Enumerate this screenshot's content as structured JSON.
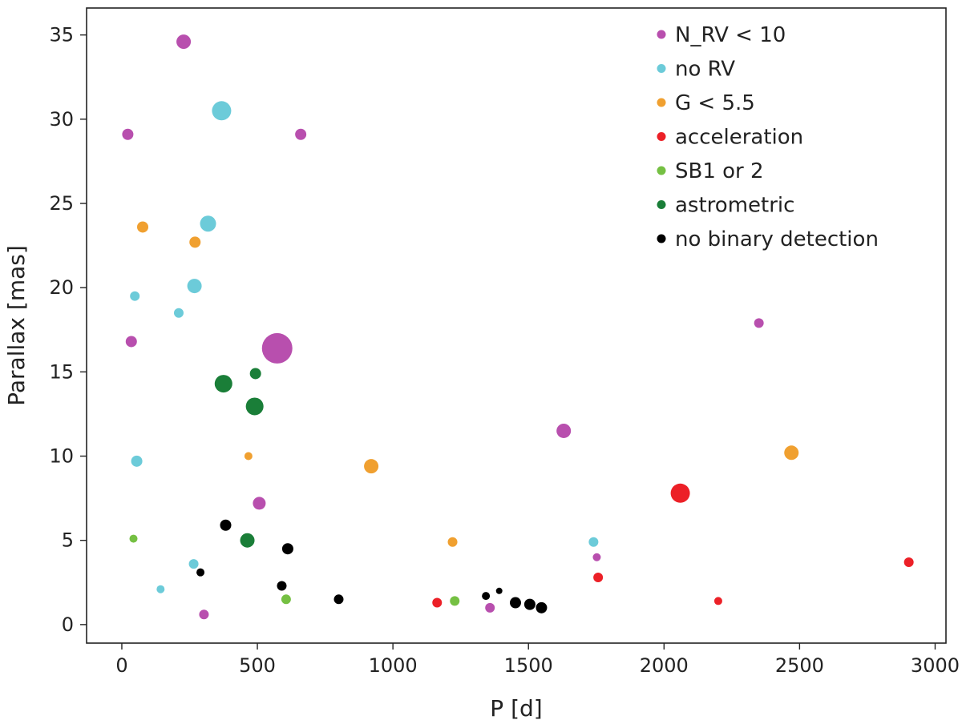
{
  "chart_data": {
    "type": "scatter",
    "title": "",
    "xlabel": "P [d]",
    "ylabel": "Parallax [mas]",
    "xlim": [
      -130,
      3040
    ],
    "ylim": [
      -1.1,
      36.6
    ],
    "xticks": [
      0,
      500,
      1000,
      1500,
      2000,
      2500,
      3000
    ],
    "yticks": [
      0,
      5,
      10,
      15,
      20,
      25,
      30,
      35
    ],
    "xtick_labels": [
      "0",
      "500",
      "1000",
      "1500",
      "2000",
      "2500",
      "3000"
    ],
    "ytick_labels": [
      "0",
      "5",
      "10",
      "15",
      "20",
      "25",
      "30",
      "35"
    ],
    "grid": false,
    "legend_position": "top-right",
    "series": [
      {
        "name": "N_RV < 10",
        "color": "#b84fae",
        "points": [
          {
            "x": 228,
            "y": 34.6,
            "size": 9
          },
          {
            "x": 22,
            "y": 29.1,
            "size": 7
          },
          {
            "x": 660,
            "y": 29.1,
            "size": 7
          },
          {
            "x": 35,
            "y": 16.8,
            "size": 7
          },
          {
            "x": 573,
            "y": 16.4,
            "size": 19
          },
          {
            "x": 1630,
            "y": 11.5,
            "size": 9
          },
          {
            "x": 2350,
            "y": 17.9,
            "size": 6
          },
          {
            "x": 507,
            "y": 7.2,
            "size": 8
          },
          {
            "x": 1752,
            "y": 4.0,
            "size": 5
          },
          {
            "x": 303,
            "y": 0.6,
            "size": 6
          },
          {
            "x": 1358,
            "y": 1.0,
            "size": 6
          }
        ]
      },
      {
        "name": "no RV",
        "color": "#6ccbd9",
        "points": [
          {
            "x": 368,
            "y": 30.5,
            "size": 12
          },
          {
            "x": 318,
            "y": 23.8,
            "size": 10
          },
          {
            "x": 268,
            "y": 20.1,
            "size": 9
          },
          {
            "x": 48,
            "y": 19.5,
            "size": 6
          },
          {
            "x": 210,
            "y": 18.5,
            "size": 6
          },
          {
            "x": 55,
            "y": 9.7,
            "size": 7
          },
          {
            "x": 265,
            "y": 3.6,
            "size": 6
          },
          {
            "x": 143,
            "y": 2.1,
            "size": 5
          },
          {
            "x": 1740,
            "y": 4.9,
            "size": 6
          }
        ]
      },
      {
        "name": "G < 5.5",
        "color": "#f0a030",
        "points": [
          {
            "x": 77,
            "y": 23.6,
            "size": 7
          },
          {
            "x": 270,
            "y": 22.7,
            "size": 7
          },
          {
            "x": 467,
            "y": 10.0,
            "size": 5
          },
          {
            "x": 920,
            "y": 9.4,
            "size": 9
          },
          {
            "x": 1220,
            "y": 4.9,
            "size": 6
          },
          {
            "x": 2470,
            "y": 10.2,
            "size": 9
          }
        ]
      },
      {
        "name": "acceleration",
        "color": "#ec2027",
        "points": [
          {
            "x": 2060,
            "y": 7.8,
            "size": 12
          },
          {
            "x": 1757,
            "y": 2.8,
            "size": 6
          },
          {
            "x": 1163,
            "y": 1.3,
            "size": 6
          },
          {
            "x": 2200,
            "y": 1.4,
            "size": 5
          },
          {
            "x": 2903,
            "y": 3.7,
            "size": 6
          }
        ]
      },
      {
        "name": "SB1 or 2",
        "color": "#75c043",
        "points": [
          {
            "x": 43,
            "y": 5.1,
            "size": 5
          },
          {
            "x": 606,
            "y": 1.5,
            "size": 6
          },
          {
            "x": 1228,
            "y": 1.4,
            "size": 6
          }
        ]
      },
      {
        "name": "astrometric",
        "color": "#1a7e38",
        "points": [
          {
            "x": 375,
            "y": 14.3,
            "size": 11
          },
          {
            "x": 493,
            "y": 14.9,
            "size": 7
          },
          {
            "x": 490,
            "y": 12.95,
            "size": 11
          },
          {
            "x": 463,
            "y": 5.0,
            "size": 9
          }
        ]
      },
      {
        "name": "no binary detection",
        "color": "#000000",
        "points": [
          {
            "x": 383,
            "y": 5.9,
            "size": 7
          },
          {
            "x": 612,
            "y": 4.5,
            "size": 7
          },
          {
            "x": 290,
            "y": 3.1,
            "size": 5
          },
          {
            "x": 590,
            "y": 2.3,
            "size": 6
          },
          {
            "x": 800,
            "y": 1.5,
            "size": 6
          },
          {
            "x": 1343,
            "y": 1.7,
            "size": 5
          },
          {
            "x": 1392,
            "y": 2.0,
            "size": 4
          },
          {
            "x": 1452,
            "y": 1.3,
            "size": 7
          },
          {
            "x": 1505,
            "y": 1.2,
            "size": 7
          },
          {
            "x": 1548,
            "y": 1.0,
            "size": 7
          }
        ]
      }
    ]
  }
}
